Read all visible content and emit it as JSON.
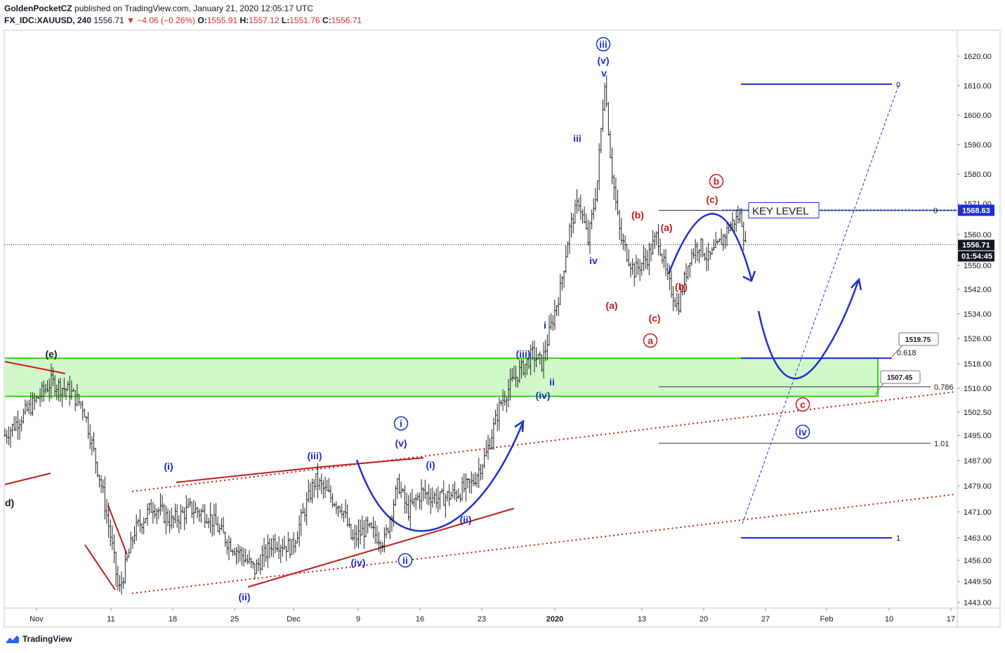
{
  "header": {
    "author": "GoldenPocketCZ",
    "published_text": "published on TradingView.com, January 21, 2020 12:05:17 UTC",
    "symbol": "FX_IDC:XAUUSD, 240",
    "last": "1556.71",
    "change": "▼ −4.06 (−0.26%)",
    "open_label": "O:",
    "open": "1555.91",
    "high_label": "H:",
    "high": "1557.12",
    "low_label": "L:",
    "low": "1551.76",
    "close_label": "C:",
    "close": "1556.71"
  },
  "footer": {
    "brand": "TradingView"
  },
  "colors": {
    "blue": "#1c2fd1",
    "red": "#c21d1d",
    "green_zone": "#c9f7c0",
    "green_line": "#32d414"
  },
  "chart_data": {
    "type": "candlestick",
    "symbol": "FX_IDC:XAUUSD",
    "timeframe": "240",
    "x_ticks": [
      "Nov",
      "11",
      "18",
      "25",
      "Dec",
      "9",
      "16",
      "23",
      "2020",
      "13",
      "20",
      "27",
      "Feb",
      "10",
      "17"
    ],
    "y_ticks": [
      "1620.00",
      "1610.00",
      "1600.00",
      "1590.00",
      "1580.00",
      "1571.00",
      "1560.00",
      "1550.00",
      "1542.00",
      "1534.00",
      "1526.00",
      "1518.00",
      "1510.00",
      "1502.50",
      "1495.00",
      "1487.00",
      "1479.00",
      "1471.00",
      "1463.00",
      "1456.00",
      "1449.50",
      "1443.00"
    ],
    "price_labels": {
      "key_level_price": "1568.63",
      "last_price": "1556.71",
      "countdown": "01:54:45"
    },
    "price_path": [
      [
        0,
        1495
      ],
      [
        3,
        1505
      ],
      [
        5,
        1512
      ],
      [
        7,
        1509
      ],
      [
        8.5,
        1504
      ],
      [
        10.5,
        1478
      ],
      [
        11.5,
        1462
      ],
      [
        12.3,
        1446
      ],
      [
        14,
        1465
      ],
      [
        16,
        1473
      ],
      [
        18,
        1468
      ],
      [
        20,
        1472
      ],
      [
        22,
        1470
      ],
      [
        24,
        1462
      ],
      [
        25.5,
        1458
      ],
      [
        27,
        1453
      ],
      [
        29,
        1462
      ],
      [
        31,
        1460
      ],
      [
        33.5,
        1481
      ],
      [
        35,
        1476
      ],
      [
        36.5,
        1472
      ],
      [
        37.5,
        1462
      ],
      [
        39,
        1466
      ],
      [
        41,
        1462
      ],
      [
        42.5,
        1480
      ],
      [
        43.5,
        1471
      ],
      [
        45,
        1477
      ],
      [
        47,
        1475
      ],
      [
        49,
        1477
      ],
      [
        50.5,
        1480
      ],
      [
        52,
        1489
      ],
      [
        53.5,
        1505
      ],
      [
        55,
        1513
      ],
      [
        57,
        1521
      ],
      [
        58,
        1518
      ],
      [
        60,
        1542
      ],
      [
        61,
        1562
      ],
      [
        62,
        1572
      ],
      [
        63,
        1558
      ],
      [
        64,
        1578
      ],
      [
        64.8,
        1612
      ],
      [
        65.5,
        1583
      ],
      [
        66.5,
        1559
      ],
      [
        68,
        1548
      ],
      [
        69.5,
        1553
      ],
      [
        70.5,
        1560
      ],
      [
        71.5,
        1546
      ],
      [
        72.7,
        1536
      ],
      [
        74,
        1553
      ],
      [
        75,
        1557
      ],
      [
        76,
        1552
      ],
      [
        77,
        1556
      ],
      [
        78.5,
        1564
      ],
      [
        79.5,
        1567
      ],
      [
        80,
        1556
      ]
    ],
    "key_level": {
      "label": "KEY LEVEL",
      "price": 1568.63
    },
    "fib_levels": [
      {
        "ratio": "0",
        "price": 1568.63
      },
      {
        "ratio": "0.786",
        "price": 1510.5
      },
      {
        "ratio": "1.01",
        "price": 1492.5
      }
    ],
    "projection": {
      "levels": [
        {
          "ratio": "0",
          "price": 1610.5
        },
        {
          "ratio": "0.618",
          "price": 1519.75
        },
        {
          "ratio": "1",
          "price": 1463
        }
      ],
      "callouts": [
        "1519.75",
        "1507.45"
      ]
    },
    "support_zone": {
      "top": 1519.75,
      "bottom": 1507.45
    },
    "wave_labels": {
      "blue": [
        "(i)",
        "(ii)",
        "(iii)",
        "(iv)",
        "(v)",
        "i",
        "ii",
        "(i)",
        "(ii)",
        "(iii)",
        "(iv)",
        "i",
        "ii",
        "iii",
        "iv",
        "v",
        "(v)",
        "iii",
        "iv"
      ],
      "red": [
        "(a)",
        "(b)",
        "(c)",
        "a",
        "(a)",
        "(b)",
        "(c)",
        "b",
        "c"
      ],
      "black": [
        "(e)",
        "d)"
      ]
    }
  }
}
